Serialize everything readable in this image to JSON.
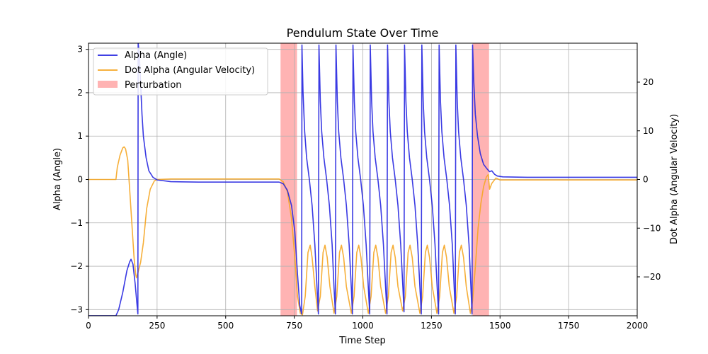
{
  "chart_data": {
    "type": "line",
    "title": "Pendulum State Over Time",
    "xlabel": "Time Step",
    "ylabel_left": "Alpha (Angle)",
    "ylabel_right": "Dot Alpha (Angular Velocity)",
    "xlim": [
      0,
      2000
    ],
    "ylim_left": [
      -3.14159,
      3.14159
    ],
    "ylim_right": [
      -28,
      28
    ],
    "x_ticks": [
      0,
      250,
      500,
      750,
      1000,
      1250,
      1500,
      1750,
      2000
    ],
    "x_tick_labels": [
      "0",
      "250",
      "500",
      "750",
      "1000",
      "1250",
      "1500",
      "1750",
      "2000"
    ],
    "y_left_ticks": [
      -3,
      -2,
      -1,
      0,
      1,
      2,
      3
    ],
    "y_left_tick_labels": [
      "−3",
      "−2",
      "−1",
      "0",
      "1",
      "2",
      "3"
    ],
    "y_right_ticks": [
      -20,
      -10,
      0,
      10,
      20
    ],
    "y_right_tick_labels": [
      "−20",
      "−10",
      "0",
      "10",
      "20"
    ],
    "grid": true,
    "legend_placement": "top-left",
    "perturbations": [
      [
        700,
        760
      ],
      [
        1400,
        1460
      ]
    ],
    "series": [
      {
        "name": "Alpha (Angle)",
        "axis": "left",
        "color": "#2525e0",
        "points": [
          [
            0,
            -3.14
          ],
          [
            100,
            -3.14
          ],
          [
            110,
            -3.0
          ],
          [
            125,
            -2.6
          ],
          [
            140,
            -2.1
          ],
          [
            150,
            -1.9
          ],
          [
            155,
            -1.84
          ],
          [
            162,
            -1.95
          ],
          [
            170,
            -2.4
          ],
          [
            177,
            -2.9
          ],
          [
            180,
            -3.1
          ],
          [
            181,
            3.14
          ],
          [
            185,
            2.9
          ],
          [
            190,
            2.2
          ],
          [
            195,
            1.5
          ],
          [
            200,
            1.0
          ],
          [
            210,
            0.5
          ],
          [
            220,
            0.2
          ],
          [
            235,
            0.05
          ],
          [
            250,
            -0.01
          ],
          [
            300,
            -0.05
          ],
          [
            400,
            -0.06
          ],
          [
            500,
            -0.06
          ],
          [
            600,
            -0.06
          ],
          [
            695,
            -0.06
          ],
          [
            710,
            -0.1
          ],
          [
            725,
            -0.25
          ],
          [
            740,
            -0.6
          ],
          [
            752,
            -1.2
          ],
          [
            762,
            -2.2
          ],
          [
            770,
            -2.9
          ],
          [
            775,
            -3.05
          ],
          [
            777,
            -3.1
          ],
          [
            778,
            3.1
          ],
          [
            782,
            2.0
          ],
          [
            788,
            1.1
          ],
          [
            795,
            0.5
          ],
          [
            805,
            0.0
          ],
          [
            815,
            -0.6
          ],
          [
            825,
            -1.5
          ],
          [
            833,
            -2.5
          ],
          [
            838,
            -3.1
          ],
          [
            840,
            3.1
          ],
          [
            845,
            1.8
          ],
          [
            850,
            1.1
          ],
          [
            858,
            0.5
          ],
          [
            868,
            0.0
          ],
          [
            878,
            -0.6
          ],
          [
            888,
            -1.5
          ],
          [
            895,
            -2.5
          ],
          [
            900,
            -3.1
          ],
          [
            902,
            3.1
          ],
          [
            907,
            1.8
          ],
          [
            912,
            1.1
          ],
          [
            920,
            0.5
          ],
          [
            930,
            0.0
          ],
          [
            940,
            -0.6
          ],
          [
            950,
            -1.5
          ],
          [
            958,
            -2.5
          ],
          [
            962,
            -3.1
          ],
          [
            964,
            3.1
          ],
          [
            969,
            1.8
          ],
          [
            974,
            1.1
          ],
          [
            982,
            0.5
          ],
          [
            992,
            0.0
          ],
          [
            1002,
            -0.6
          ],
          [
            1012,
            -1.5
          ],
          [
            1020,
            -2.5
          ],
          [
            1025,
            -3.1
          ],
          [
            1027,
            3.1
          ],
          [
            1032,
            1.8
          ],
          [
            1037,
            1.1
          ],
          [
            1045,
            0.5
          ],
          [
            1055,
            0.0
          ],
          [
            1065,
            -0.6
          ],
          [
            1075,
            -1.5
          ],
          [
            1083,
            -2.5
          ],
          [
            1088,
            -3.1
          ],
          [
            1090,
            3.1
          ],
          [
            1095,
            1.8
          ],
          [
            1100,
            1.1
          ],
          [
            1108,
            0.5
          ],
          [
            1118,
            0.0
          ],
          [
            1128,
            -0.6
          ],
          [
            1138,
            -1.5
          ],
          [
            1146,
            -2.5
          ],
          [
            1150,
            -3.05
          ],
          [
            1152,
            3.1
          ],
          [
            1157,
            1.8
          ],
          [
            1162,
            1.1
          ],
          [
            1170,
            0.5
          ],
          [
            1180,
            0.0
          ],
          [
            1190,
            -0.6
          ],
          [
            1200,
            -1.5
          ],
          [
            1208,
            -2.5
          ],
          [
            1213,
            -3.1
          ],
          [
            1215,
            3.1
          ],
          [
            1220,
            1.8
          ],
          [
            1225,
            1.1
          ],
          [
            1233,
            0.5
          ],
          [
            1243,
            0.0
          ],
          [
            1253,
            -0.6
          ],
          [
            1263,
            -1.5
          ],
          [
            1271,
            -2.5
          ],
          [
            1276,
            -3.1
          ],
          [
            1278,
            3.1
          ],
          [
            1283,
            1.8
          ],
          [
            1288,
            1.1
          ],
          [
            1296,
            0.5
          ],
          [
            1306,
            0.0
          ],
          [
            1316,
            -0.6
          ],
          [
            1326,
            -1.5
          ],
          [
            1333,
            -2.5
          ],
          [
            1337,
            -3.1
          ],
          [
            1339,
            3.1
          ],
          [
            1344,
            1.8
          ],
          [
            1349,
            1.1
          ],
          [
            1357,
            0.5
          ],
          [
            1367,
            0.0
          ],
          [
            1377,
            -0.6
          ],
          [
            1387,
            -1.5
          ],
          [
            1394,
            -2.5
          ],
          [
            1398,
            -3.1
          ],
          [
            1400,
            3.1
          ],
          [
            1404,
            2.3
          ],
          [
            1410,
            1.5
          ],
          [
            1418,
            1.0
          ],
          [
            1428,
            0.6
          ],
          [
            1440,
            0.35
          ],
          [
            1452,
            0.25
          ],
          [
            1462,
            0.18
          ],
          [
            1470,
            0.2
          ],
          [
            1480,
            0.12
          ],
          [
            1490,
            0.08
          ],
          [
            1510,
            0.06
          ],
          [
            1600,
            0.05
          ],
          [
            1700,
            0.05
          ],
          [
            1800,
            0.05
          ],
          [
            1900,
            0.05
          ],
          [
            2000,
            0.05
          ]
        ]
      },
      {
        "name": "Dot Alpha (Angular Velocity)",
        "axis": "right",
        "color": "#f5a623",
        "points": [
          [
            0,
            0
          ],
          [
            100,
            0
          ],
          [
            105,
            2.5
          ],
          [
            115,
            5.0
          ],
          [
            125,
            6.5
          ],
          [
            130,
            6.7
          ],
          [
            135,
            6.3
          ],
          [
            143,
            4.0
          ],
          [
            150,
            -2.0
          ],
          [
            158,
            -9.0
          ],
          [
            166,
            -16.0
          ],
          [
            172,
            -19.5
          ],
          [
            175,
            -20.2
          ],
          [
            180,
            -19.2
          ],
          [
            190,
            -17.0
          ],
          [
            200,
            -13.0
          ],
          [
            212,
            -6.0
          ],
          [
            225,
            -2.0
          ],
          [
            240,
            -0.3
          ],
          [
            250,
            0.0
          ],
          [
            300,
            0.1
          ],
          [
            400,
            0.1
          ],
          [
            500,
            0.1
          ],
          [
            600,
            0.1
          ],
          [
            695,
            0.1
          ],
          [
            710,
            -0.5
          ],
          [
            725,
            -2.5
          ],
          [
            740,
            -8.0
          ],
          [
            752,
            -16.0
          ],
          [
            762,
            -24.0
          ],
          [
            772,
            -27.5
          ],
          [
            780,
            -27.8
          ],
          [
            790,
            -24.0
          ],
          [
            800,
            -15.0
          ],
          [
            808,
            -13.5
          ],
          [
            815,
            -16.0
          ],
          [
            825,
            -22.0
          ],
          [
            835,
            -27.0
          ],
          [
            845,
            -24.0
          ],
          [
            855,
            -15.0
          ],
          [
            862,
            -13.5
          ],
          [
            870,
            -16.0
          ],
          [
            880,
            -22.0
          ],
          [
            895,
            -27.5
          ],
          [
            905,
            -24.0
          ],
          [
            915,
            -15.0
          ],
          [
            922,
            -13.5
          ],
          [
            930,
            -16.0
          ],
          [
            940,
            -22.0
          ],
          [
            958,
            -27.5
          ],
          [
            968,
            -24.0
          ],
          [
            978,
            -15.0
          ],
          [
            985,
            -13.5
          ],
          [
            993,
            -16.0
          ],
          [
            1003,
            -22.0
          ],
          [
            1020,
            -27.5
          ],
          [
            1030,
            -24.0
          ],
          [
            1040,
            -15.0
          ],
          [
            1047,
            -13.5
          ],
          [
            1055,
            -16.0
          ],
          [
            1065,
            -22.0
          ],
          [
            1083,
            -27.5
          ],
          [
            1093,
            -24.0
          ],
          [
            1103,
            -15.0
          ],
          [
            1110,
            -13.5
          ],
          [
            1118,
            -16.0
          ],
          [
            1128,
            -22.0
          ],
          [
            1145,
            -27.0
          ],
          [
            1155,
            -24.0
          ],
          [
            1165,
            -15.0
          ],
          [
            1172,
            -13.5
          ],
          [
            1180,
            -16.0
          ],
          [
            1190,
            -22.0
          ],
          [
            1208,
            -27.5
          ],
          [
            1218,
            -24.0
          ],
          [
            1228,
            -15.0
          ],
          [
            1235,
            -13.5
          ],
          [
            1243,
            -16.0
          ],
          [
            1253,
            -22.0
          ],
          [
            1270,
            -27.5
          ],
          [
            1280,
            -24.0
          ],
          [
            1290,
            -15.0
          ],
          [
            1297,
            -13.5
          ],
          [
            1305,
            -16.0
          ],
          [
            1315,
            -22.0
          ],
          [
            1332,
            -27.5
          ],
          [
            1342,
            -24.0
          ],
          [
            1352,
            -15.0
          ],
          [
            1359,
            -13.5
          ],
          [
            1367,
            -16.0
          ],
          [
            1377,
            -22.0
          ],
          [
            1392,
            -27.5
          ],
          [
            1400,
            -25.0
          ],
          [
            1410,
            -18.0
          ],
          [
            1420,
            -10.0
          ],
          [
            1430,
            -5.0
          ],
          [
            1440,
            -1.5
          ],
          [
            1450,
            0.5
          ],
          [
            1457,
            1.0
          ],
          [
            1462,
            -2.0
          ],
          [
            1470,
            -0.8
          ],
          [
            1485,
            0.3
          ],
          [
            1500,
            -0.1
          ],
          [
            1550,
            -0.1
          ],
          [
            1650,
            -0.1
          ],
          [
            1750,
            -0.1
          ],
          [
            1850,
            -0.1
          ],
          [
            2000,
            -0.1
          ]
        ]
      }
    ],
    "perturbation_label": "Perturbation",
    "perturbation_color": "#ff9999"
  }
}
